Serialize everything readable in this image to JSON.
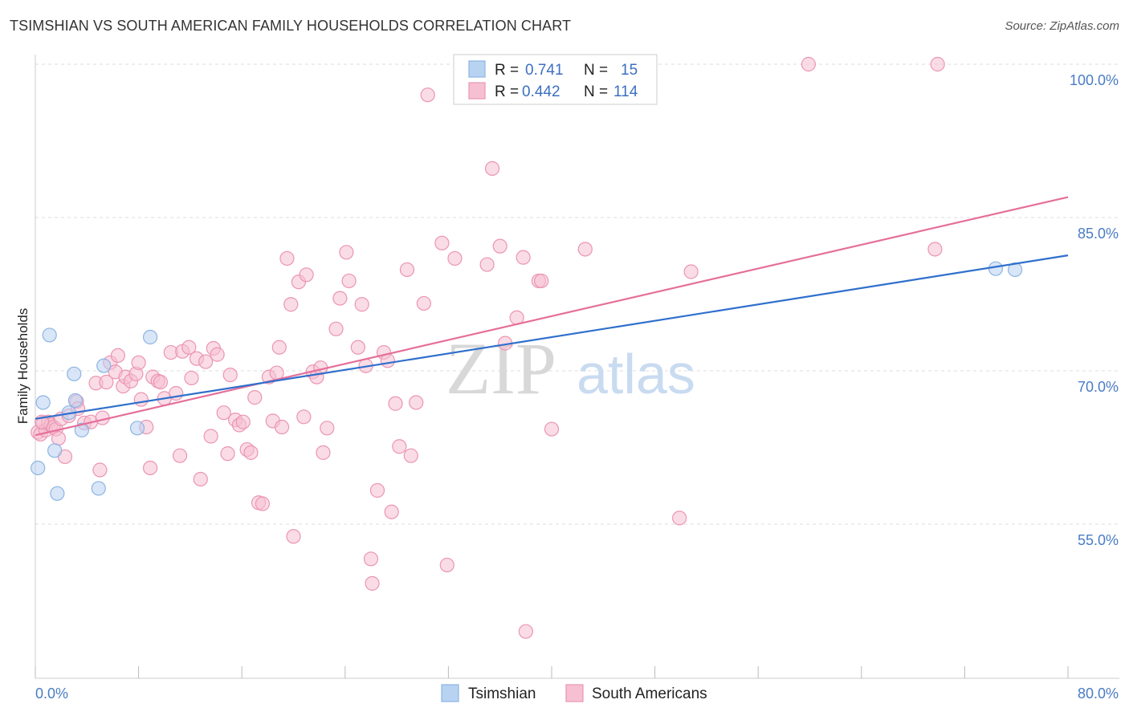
{
  "title": "TSIMSHIAN VS SOUTH AMERICAN FAMILY HOUSEHOLDS CORRELATION CHART",
  "source": "Source: ZipAtlas.com",
  "watermark": {
    "zip": "ZIP",
    "atlas": "atlas"
  },
  "colors": {
    "blue_fill": "#b8d2f2",
    "blue_stroke": "#8db4e3",
    "blue_line": "#2f6fcc",
    "pink_fill": "#f6c0d2",
    "pink_stroke": "#eb95b2",
    "pink_line": "#e56f9a",
    "grid": "#dddddd",
    "tick_text": "#4a7cc4"
  },
  "legend": {
    "rows": [
      {
        "r_label": "R =",
        "r_value": "0.741",
        "n_label": "N =",
        "n_value": "15"
      },
      {
        "r_label": "R =",
        "r_value": "0.442",
        "n_label": "N =",
        "n_value": "114"
      }
    ]
  },
  "chart_data": {
    "type": "scatter",
    "title": "TSIMSHIAN VS SOUTH AMERICAN FAMILY HOUSEHOLDS CORRELATION CHART",
    "xlabel": "",
    "ylabel": "Family Households",
    "xlim": [
      0,
      80
    ],
    "ylim": [
      40,
      101.5
    ],
    "x_tick_labels": [
      "0.0%",
      "80.0%"
    ],
    "y_ticks": [
      55,
      70,
      85,
      100
    ],
    "y_tick_labels": [
      "55.0%",
      "70.0%",
      "85.0%",
      "100.0%"
    ],
    "grid": true,
    "legend_position": "top-center",
    "series": [
      {
        "name": "Tsimshian",
        "r": 0.741,
        "n": 15,
        "trend": {
          "x0": 0,
          "y0": 65.3,
          "x1": 80,
          "y1": 81.3
        },
        "points": [
          [
            0.2,
            60.5
          ],
          [
            0.6,
            66.9
          ],
          [
            1.1,
            73.5
          ],
          [
            1.5,
            62.2
          ],
          [
            1.7,
            58.0
          ],
          [
            2.6,
            65.9
          ],
          [
            3.0,
            69.7
          ],
          [
            3.1,
            67.1
          ],
          [
            3.6,
            64.2
          ],
          [
            4.9,
            58.5
          ],
          [
            5.3,
            70.5
          ],
          [
            7.9,
            64.4
          ],
          [
            8.9,
            73.3
          ],
          [
            74.4,
            80.0
          ],
          [
            75.9,
            79.9
          ]
        ]
      },
      {
        "name": "South Americans",
        "r": 0.442,
        "n": 114,
        "trend": {
          "x0": 0,
          "y0": 63.7,
          "x1": 80,
          "y1": 87.0
        },
        "points": [
          [
            0.2,
            64.0
          ],
          [
            0.4,
            63.8
          ],
          [
            0.6,
            64.9
          ],
          [
            0.8,
            64.2
          ],
          [
            1.0,
            65.0
          ],
          [
            1.2,
            64.7
          ],
          [
            1.4,
            64.5
          ],
          [
            1.6,
            64.3
          ],
          [
            1.8,
            63.4
          ],
          [
            2.0,
            65.3
          ],
          [
            2.3,
            61.6
          ],
          [
            2.6,
            65.6
          ],
          [
            3.2,
            67.0
          ],
          [
            3.3,
            66.3
          ],
          [
            3.8,
            64.9
          ],
          [
            4.3,
            65.0
          ],
          [
            4.7,
            68.8
          ],
          [
            5.0,
            60.3
          ],
          [
            5.2,
            65.4
          ],
          [
            5.5,
            68.9
          ],
          [
            5.8,
            70.8
          ],
          [
            6.2,
            69.9
          ],
          [
            6.4,
            71.5
          ],
          [
            6.8,
            68.5
          ],
          [
            7.0,
            69.4
          ],
          [
            7.4,
            69.0
          ],
          [
            7.8,
            69.7
          ],
          [
            8.0,
            70.8
          ],
          [
            8.2,
            67.2
          ],
          [
            8.6,
            64.5
          ],
          [
            8.9,
            60.5
          ],
          [
            9.1,
            69.4
          ],
          [
            9.5,
            69.0
          ],
          [
            9.7,
            68.9
          ],
          [
            10.0,
            67.3
          ],
          [
            10.5,
            71.8
          ],
          [
            10.9,
            67.8
          ],
          [
            11.2,
            61.7
          ],
          [
            11.4,
            71.9
          ],
          [
            11.9,
            72.3
          ],
          [
            12.1,
            69.3
          ],
          [
            12.5,
            71.2
          ],
          [
            12.8,
            59.4
          ],
          [
            13.2,
            70.9
          ],
          [
            13.6,
            63.6
          ],
          [
            13.8,
            72.2
          ],
          [
            14.1,
            71.6
          ],
          [
            14.6,
            65.9
          ],
          [
            14.9,
            61.9
          ],
          [
            15.1,
            69.6
          ],
          [
            15.5,
            65.2
          ],
          [
            15.8,
            64.7
          ],
          [
            16.1,
            65.0
          ],
          [
            16.4,
            62.3
          ],
          [
            16.7,
            62.0
          ],
          [
            17.0,
            67.4
          ],
          [
            17.3,
            57.1
          ],
          [
            17.6,
            57.0
          ],
          [
            18.1,
            69.4
          ],
          [
            18.4,
            65.1
          ],
          [
            18.7,
            69.8
          ],
          [
            18.9,
            72.3
          ],
          [
            19.1,
            64.5
          ],
          [
            19.5,
            81.0
          ],
          [
            19.8,
            76.5
          ],
          [
            20.0,
            53.8
          ],
          [
            20.4,
            78.7
          ],
          [
            20.8,
            65.5
          ],
          [
            21.0,
            79.4
          ],
          [
            21.5,
            69.9
          ],
          [
            21.8,
            69.4
          ],
          [
            22.1,
            70.3
          ],
          [
            22.3,
            62.0
          ],
          [
            22.6,
            64.4
          ],
          [
            23.3,
            74.1
          ],
          [
            23.6,
            77.1
          ],
          [
            24.1,
            81.6
          ],
          [
            24.3,
            78.8
          ],
          [
            25.0,
            72.3
          ],
          [
            25.3,
            76.5
          ],
          [
            25.6,
            70.5
          ],
          [
            26.0,
            51.6
          ],
          [
            26.1,
            49.2
          ],
          [
            26.5,
            58.3
          ],
          [
            27.0,
            71.8
          ],
          [
            27.3,
            71.0
          ],
          [
            27.6,
            56.2
          ],
          [
            27.9,
            66.8
          ],
          [
            28.2,
            62.6
          ],
          [
            28.8,
            79.9
          ],
          [
            29.1,
            61.7
          ],
          [
            29.5,
            66.9
          ],
          [
            30.1,
            76.6
          ],
          [
            30.4,
            97.0
          ],
          [
            31.5,
            82.5
          ],
          [
            31.9,
            51.0
          ],
          [
            32.5,
            81.0
          ],
          [
            35.0,
            80.4
          ],
          [
            35.4,
            89.8
          ],
          [
            36.0,
            82.2
          ],
          [
            36.4,
            72.7
          ],
          [
            37.3,
            75.2
          ],
          [
            37.8,
            81.1
          ],
          [
            38.0,
            44.5
          ],
          [
            39.0,
            78.8
          ],
          [
            39.2,
            78.8
          ],
          [
            40.0,
            64.3
          ],
          [
            42.6,
            81.9
          ],
          [
            49.9,
            55.6
          ],
          [
            50.8,
            79.7
          ],
          [
            59.9,
            100.0
          ],
          [
            69.7,
            81.9
          ],
          [
            69.9,
            100.0
          ],
          [
            0.5,
            65.0
          ]
        ]
      }
    ]
  },
  "bottom_legend": {
    "items": [
      "Tsimshian",
      "South Americans"
    ]
  }
}
